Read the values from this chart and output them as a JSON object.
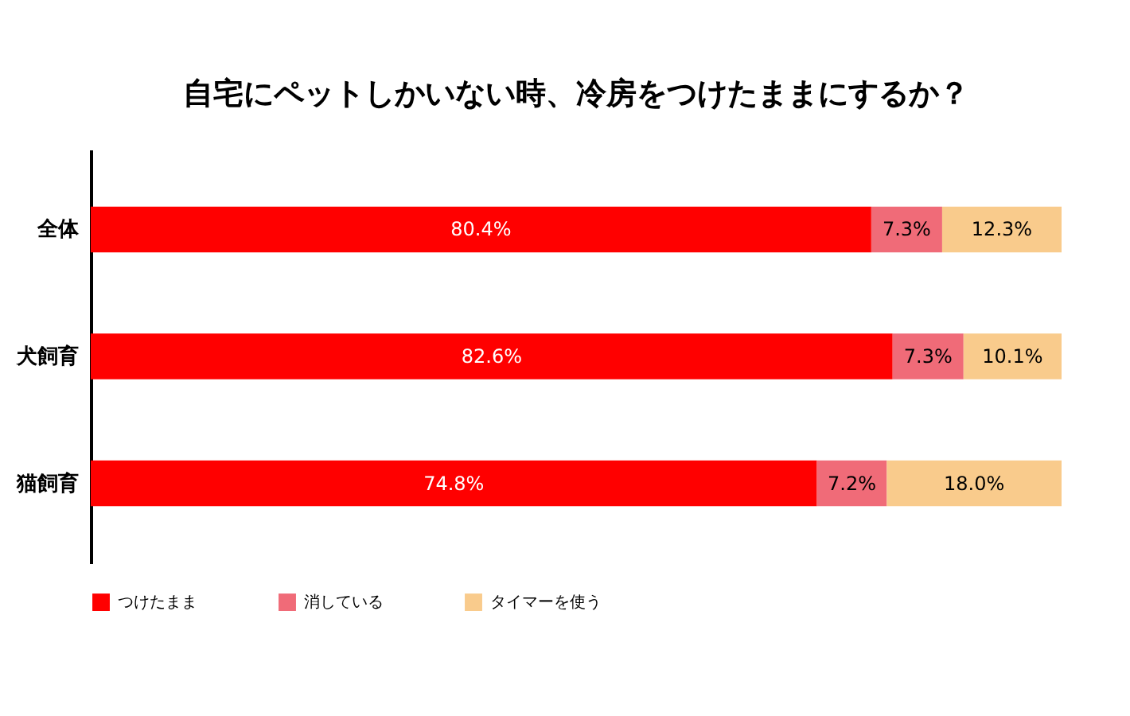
{
  "chart_data": {
    "type": "bar",
    "orientation": "horizontal",
    "stacked": true,
    "title": "自宅にペットしかいない時、冷房をつけたままにするか？",
    "categories": [
      "全体",
      "犬飼育",
      "猫飼育"
    ],
    "series": [
      {
        "name": "つけたまま",
        "color": "#ff0000",
        "values": [
          80.4,
          82.6,
          74.8
        ],
        "value_labels": [
          "80.4%",
          "82.6%",
          "74.8%"
        ]
      },
      {
        "name": "消している",
        "color": "#f06b78",
        "values": [
          7.3,
          7.3,
          7.2
        ],
        "value_labels": [
          "7.3%",
          "7.3%",
          "7.2%"
        ]
      },
      {
        "name": "タイマーを使う",
        "color": "#f9cb8c",
        "values": [
          12.3,
          10.1,
          18.0
        ],
        "value_labels": [
          "12.3%",
          "10.1%",
          "18.0%"
        ]
      }
    ],
    "legend": "bottom",
    "grid": false
  }
}
